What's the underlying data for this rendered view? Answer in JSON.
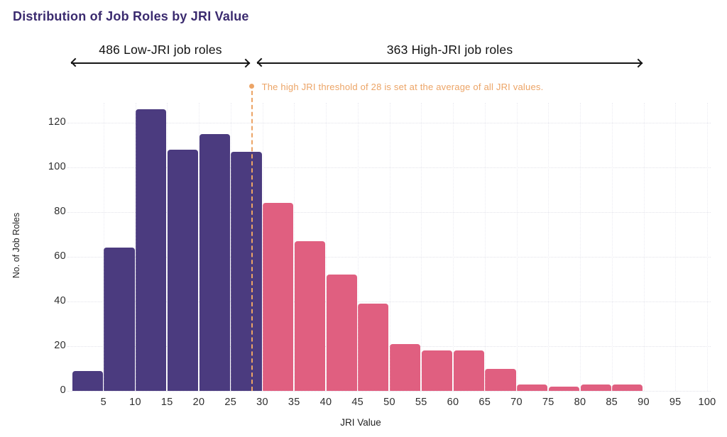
{
  "title": "Distribution of Job Roles by JRI Value",
  "annotations": {
    "low_range_label": "486 Low-JRI job roles",
    "high_range_label": "363 High-JRI job roles",
    "threshold_note": "The high JRI threshold of 28 is set at the average of all JRI values."
  },
  "colors": {
    "title": "#3b2b6f",
    "low_bar": "#4b3b7f",
    "high_bar": "#e05f80",
    "threshold": "#eca466",
    "arrow": "#161616",
    "axis_text": "#2e2e2e"
  },
  "chart_data": {
    "type": "bar",
    "title": "Distribution of Job Roles by JRI Value",
    "xlabel": "JRI Value",
    "ylabel": "No. of Job Roles",
    "bin_width": 5,
    "bin_starts": [
      0,
      5,
      10,
      15,
      20,
      25,
      30,
      35,
      40,
      45,
      50,
      55,
      60,
      65,
      70,
      75,
      80,
      85,
      90,
      95
    ],
    "values": [
      9,
      64,
      126,
      108,
      115,
      107,
      84,
      67,
      52,
      39,
      21,
      18,
      18,
      10,
      3,
      2,
      3,
      3,
      0,
      0
    ],
    "low_high_split_at": 30,
    "threshold_value": 28,
    "low_count": 486,
    "high_count": 363,
    "x_ticks": [
      5,
      10,
      15,
      20,
      25,
      30,
      35,
      40,
      45,
      50,
      55,
      60,
      65,
      70,
      75,
      80,
      85,
      90,
      95,
      100
    ],
    "y_ticks": [
      0,
      20,
      40,
      60,
      80,
      100,
      120
    ],
    "xlim": [
      0,
      100
    ],
    "ylim": [
      0,
      130
    ],
    "grid": true,
    "legend": "none"
  }
}
